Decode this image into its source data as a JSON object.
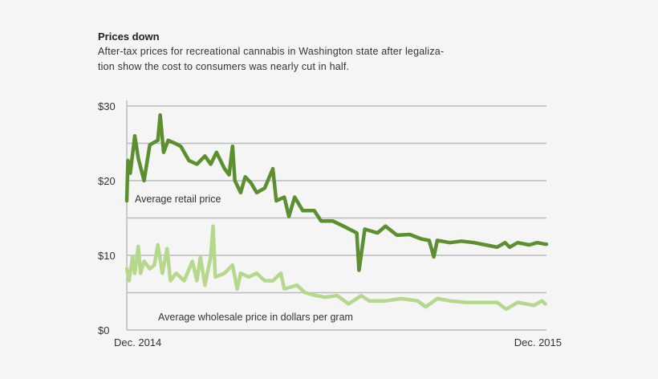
{
  "header": {
    "title": "Prices down",
    "subtitle_line1": "After-tax prices for recreational cannabis in Washington state after legaliza-",
    "subtitle_line2": "tion show the cost to consumers was nearly cut in half."
  },
  "chart_data": {
    "type": "line",
    "title": "Prices down",
    "xlabel": "",
    "ylabel": "",
    "ylim": [
      0,
      30
    ],
    "xlim": [
      "2014-12-01",
      "2015-12-01"
    ],
    "grid": true,
    "y_gridlines": [
      0,
      5,
      10,
      15,
      20,
      25,
      30
    ],
    "y_tick_labels": [
      {
        "value": 0,
        "label": "$0"
      },
      {
        "value": 10,
        "label": "$10"
      },
      {
        "value": 20,
        "label": "$20"
      },
      {
        "value": 30,
        "label": "$30"
      }
    ],
    "x_tick_labels": [
      {
        "value": "2014-12-01",
        "label": "Dec. 2014"
      },
      {
        "value": "2015-12-01",
        "label": "Dec. 2015"
      }
    ],
    "legend": "inline",
    "series": [
      {
        "name": "Average retail price",
        "color": "#5b8f2f",
        "x": [
          "2014-12-01",
          "2014-12-02",
          "2014-12-04",
          "2014-12-08",
          "2014-12-11",
          "2014-12-16",
          "2014-12-21",
          "2014-12-28",
          "2014-12-30",
          "2015-01-02",
          "2015-01-06",
          "2015-01-12",
          "2015-01-17",
          "2015-01-24",
          "2015-01-31",
          "2015-02-07",
          "2015-02-12",
          "2015-02-17",
          "2015-02-24",
          "2015-02-28",
          "2015-03-03",
          "2015-03-05",
          "2015-03-10",
          "2015-03-14",
          "2015-03-19",
          "2015-03-24",
          "2015-03-31",
          "2015-04-07",
          "2015-04-10",
          "2015-04-17",
          "2015-04-21",
          "2015-04-26",
          "2015-05-03",
          "2015-05-13",
          "2015-05-19",
          "2015-05-29",
          "2015-06-09",
          "2015-06-19",
          "2015-06-21",
          "2015-06-26",
          "2015-07-07",
          "2015-07-14",
          "2015-07-24",
          "2015-08-04",
          "2015-08-14",
          "2015-08-21",
          "2015-08-25",
          "2015-08-28",
          "2015-09-08",
          "2015-09-18",
          "2015-09-29",
          "2015-10-09",
          "2015-10-19",
          "2015-10-26",
          "2015-10-30",
          "2015-11-06",
          "2015-11-16",
          "2015-11-23",
          "2015-11-30",
          "2015-12-01"
        ],
        "values": [
          17.3,
          22.7,
          21.0,
          26.0,
          23.0,
          20.0,
          24.8,
          25.4,
          28.8,
          23.8,
          25.4,
          25.0,
          24.6,
          22.7,
          22.2,
          23.3,
          22.2,
          23.8,
          21.6,
          20.8,
          24.6,
          20.0,
          18.4,
          20.5,
          19.7,
          18.4,
          19.0,
          21.6,
          17.3,
          17.8,
          15.2,
          17.8,
          16.0,
          16.0,
          14.6,
          14.6,
          13.8,
          13.0,
          8.0,
          13.5,
          13.0,
          13.9,
          12.7,
          12.8,
          12.2,
          12.0,
          9.8,
          12.0,
          11.7,
          11.9,
          11.7,
          11.4,
          11.1,
          11.7,
          11.1,
          11.7,
          11.4,
          11.7,
          11.5,
          11.5
        ]
      },
      {
        "name": "Average wholesale price in dollars per gram",
        "color": "#b6d88c",
        "x": [
          "2014-12-01",
          "2014-12-03",
          "2014-12-06",
          "2014-12-08",
          "2014-12-11",
          "2014-12-13",
          "2014-12-16",
          "2014-12-21",
          "2014-12-25",
          "2014-12-28",
          "2015-01-01",
          "2015-01-05",
          "2015-01-08",
          "2015-01-13",
          "2015-01-20",
          "2015-01-27",
          "2015-01-31",
          "2015-02-03",
          "2015-02-07",
          "2015-02-12",
          "2015-02-14",
          "2015-02-16",
          "2015-02-24",
          "2015-03-03",
          "2015-03-07",
          "2015-03-10",
          "2015-03-17",
          "2015-03-24",
          "2015-03-31",
          "2015-04-07",
          "2015-04-14",
          "2015-04-17",
          "2015-04-28",
          "2015-05-05",
          "2015-05-15",
          "2015-05-22",
          "2015-06-02",
          "2015-06-12",
          "2015-06-23",
          "2015-06-30",
          "2015-07-14",
          "2015-07-28",
          "2015-08-11",
          "2015-08-18",
          "2015-08-28",
          "2015-09-08",
          "2015-09-22",
          "2015-10-06",
          "2015-10-19",
          "2015-10-27",
          "2015-11-06",
          "2015-11-20",
          "2015-11-27",
          "2015-11-30"
        ],
        "values": [
          8.2,
          6.6,
          9.8,
          7.6,
          11.2,
          7.6,
          9.2,
          8.2,
          8.7,
          11.4,
          7.6,
          10.9,
          6.6,
          7.6,
          6.6,
          9.2,
          6.6,
          9.8,
          6.0,
          9.8,
          13.9,
          7.1,
          7.6,
          8.7,
          5.5,
          7.6,
          7.1,
          7.6,
          6.6,
          6.6,
          7.6,
          5.5,
          6.0,
          5.0,
          4.6,
          4.4,
          4.6,
          3.5,
          4.6,
          3.9,
          3.9,
          4.2,
          3.9,
          3.1,
          4.2,
          3.9,
          3.7,
          3.7,
          3.7,
          2.8,
          3.7,
          3.3,
          3.9,
          3.5
        ]
      }
    ]
  }
}
